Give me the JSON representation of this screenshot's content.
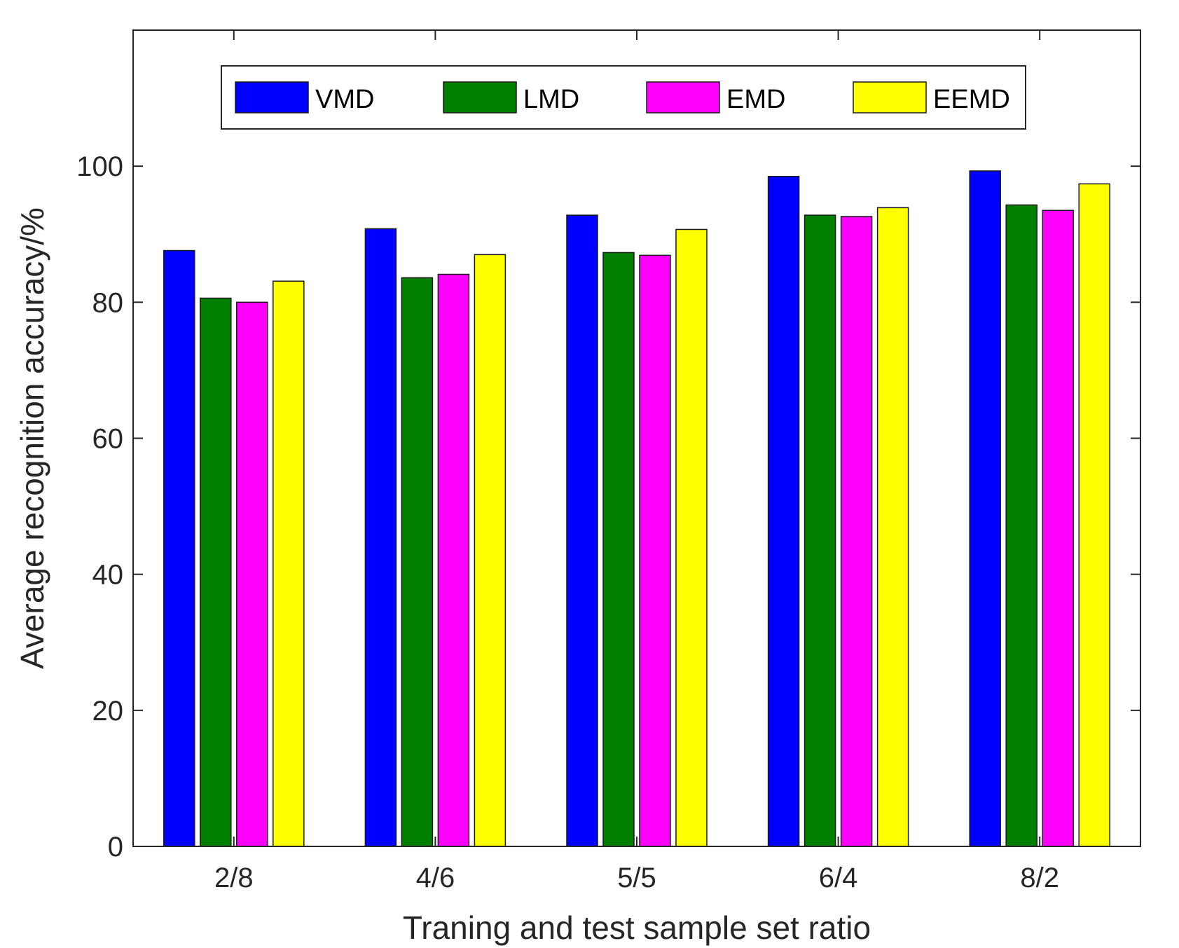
{
  "chart_data": {
    "type": "bar",
    "title": "",
    "xlabel": "Traning and test sample set ratio",
    "ylabel": "Average recognition accuracy/%",
    "categories": [
      "2/8",
      "4/6",
      "5/5",
      "6/4",
      "8/2"
    ],
    "ylim": [
      0,
      120
    ],
    "yticks": [
      0,
      20,
      40,
      60,
      80,
      100
    ],
    "grid": false,
    "legend_position": "top",
    "series": [
      {
        "name": "VMD",
        "color": "#0000ff",
        "values": [
          87.6,
          90.8,
          92.8,
          98.5,
          99.3
        ]
      },
      {
        "name": "LMD",
        "color": "#007f00",
        "values": [
          80.6,
          83.6,
          87.3,
          92.8,
          94.3
        ]
      },
      {
        "name": "EMD",
        "color": "#ff00ff",
        "values": [
          80.0,
          84.1,
          86.9,
          92.6,
          93.5
        ]
      },
      {
        "name": "EEMD",
        "color": "#ffff00",
        "values": [
          83.1,
          87.0,
          90.7,
          93.9,
          97.4
        ]
      }
    ]
  }
}
